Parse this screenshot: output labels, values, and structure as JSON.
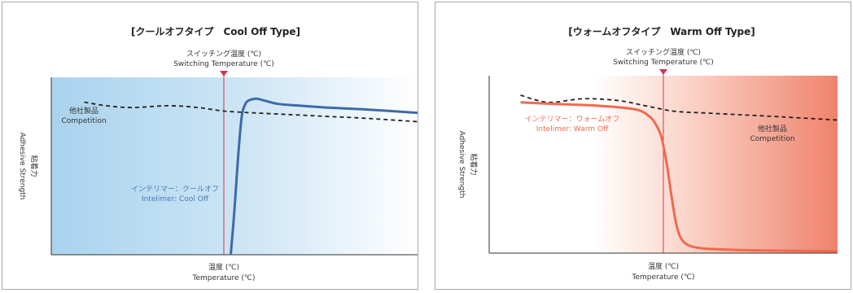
{
  "colors": {
    "cool_curve": "#3d6aa8",
    "cool_label": "#4a7ab8",
    "cool_bg": "#a9d3ee",
    "warm_curve": "#f06a4e",
    "warm_label": "#f06a4e",
    "warm_bg": "#f0826c",
    "marker": "#d9344a",
    "competition": "#222222",
    "axis": "#333333"
  },
  "chart_data": [
    {
      "type": "line",
      "title": "[クールオフタイプ　Cool Off Type]",
      "switching_label": [
        "スイッチング温度 (℃)",
        "Switching Temperature (℃)"
      ],
      "xlabel": [
        "温度 (℃)",
        "Temperature (℃)"
      ],
      "ylabel": [
        "粘着力",
        "Adhesive Strength"
      ],
      "xlim": [
        0,
        100
      ],
      "ylim": [
        0,
        100
      ],
      "switching_temperature": 50,
      "series": [
        {
          "name": "Intelimer: Cool Off",
          "label": [
            "インテリマー：クールオフ",
            "Intelimer: Cool Off"
          ],
          "style": "solid",
          "x": [
            49,
            50,
            51,
            52,
            53,
            54,
            56,
            58,
            62,
            68,
            75,
            85,
            100
          ],
          "y": [
            0,
            25,
            55,
            78,
            85,
            87,
            88,
            87,
            85,
            84,
            83,
            82,
            80
          ]
        },
        {
          "name": "Competition",
          "label": [
            "他社製品",
            "Competition"
          ],
          "style": "dashed",
          "x": [
            9,
            15,
            22,
            32,
            40,
            47,
            55,
            65,
            75,
            85,
            100
          ],
          "y": [
            86,
            84,
            83,
            84,
            83,
            81,
            80,
            79,
            78,
            77,
            75
          ]
        }
      ]
    },
    {
      "type": "line",
      "title": "[ウォームオフタイプ　Warm Off Type]",
      "switching_label": [
        "スイッチング温度 (℃)",
        "Switching Temperature (℃)"
      ],
      "xlabel": [
        "温度 (℃)",
        "Temperature (℃)"
      ],
      "ylabel": [
        "粘着力",
        "Adhesive Strength"
      ],
      "xlim": [
        0,
        100
      ],
      "ylim": [
        0,
        100
      ],
      "switching_temperature": 50,
      "series": [
        {
          "name": "Intelimer: Warm Off",
          "label": [
            "インテリマー：ウォームオフ",
            "Intelimer: Warm Off"
          ],
          "style": "solid",
          "x": [
            9,
            20,
            32,
            42,
            46,
            48,
            49.5,
            51,
            52.5,
            54,
            56,
            60,
            68,
            80,
            100
          ],
          "y": [
            85,
            84,
            83,
            81,
            77,
            72,
            65,
            50,
            30,
            14,
            6,
            3,
            2,
            1.5,
            1
          ]
        },
        {
          "name": "Competition",
          "label": [
            "他社製品",
            "Competition"
          ],
          "style": "dashed",
          "x": [
            9,
            17,
            27,
            37,
            45,
            53,
            62,
            72,
            82,
            100
          ],
          "y": [
            89,
            85,
            87,
            86,
            83,
            80,
            79,
            78,
            77,
            75
          ]
        }
      ]
    }
  ]
}
